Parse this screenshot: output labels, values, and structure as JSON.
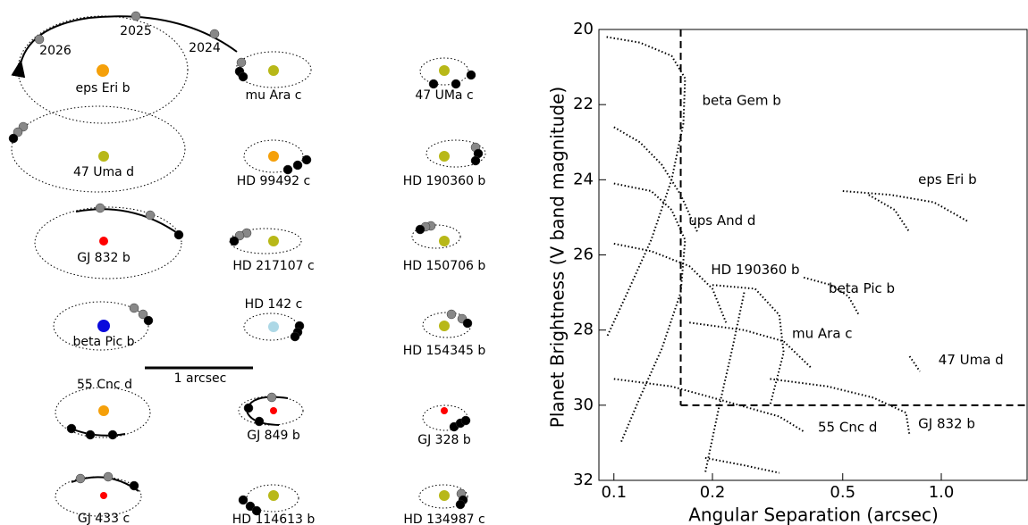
{
  "orbit_panel": {
    "year_labels": [
      "2026",
      "2025",
      "2024"
    ],
    "scale_label": "1 arcsec",
    "systems": [
      {
        "label": "eps Eri b",
        "star_color": "#f5a00a"
      },
      {
        "label": "mu Ara c",
        "star_color": "#b8b818"
      },
      {
        "label": "47 UMa c",
        "star_color": "#b8b818"
      },
      {
        "label": "47 Uma d",
        "star_color": "#b8b818"
      },
      {
        "label": "HD 99492 c",
        "star_color": "#f5a00a"
      },
      {
        "label": "HD 190360 b",
        "star_color": "#b8b818"
      },
      {
        "label": "GJ 832 b",
        "star_color": "#ff0000"
      },
      {
        "label": "HD 217107 c",
        "star_color": "#b8b818"
      },
      {
        "label": "HD 150706 b",
        "star_color": "#b8b818"
      },
      {
        "label": "beta Pic b",
        "star_color": "#0a0adc"
      },
      {
        "label": "HD 142 c",
        "star_color": "#add8e6"
      },
      {
        "label": "HD 154345 b",
        "star_color": "#b8b818"
      },
      {
        "label": "55 Cnc d",
        "star_color": "#f5a00a"
      },
      {
        "label": "GJ 849 b",
        "star_color": "#ff0000"
      },
      {
        "label": "GJ 328 b",
        "star_color": "#ff0000"
      },
      {
        "label": "GJ 433 c",
        "star_color": "#ff0000"
      },
      {
        "label": "HD 114613 b",
        "star_color": "#b8b818"
      },
      {
        "label": "HD 134987 c",
        "star_color": "#b8b818"
      }
    ]
  },
  "chart_data": {
    "type": "line",
    "xlabel": "Angular Separation (arcsec)",
    "ylabel": "Planet Brightness (V band magnitude)",
    "xscale": "log",
    "xlim": [
      0.09,
      1.84
    ],
    "ylim": [
      20,
      32
    ],
    "invert_y": true,
    "xticks": [
      0.1,
      0.2,
      0.5,
      {
        "value": 1,
        "label": "1.0"
      }
    ],
    "yticks": [
      20,
      22,
      24,
      26,
      28,
      30,
      32
    ],
    "color": "#000000",
    "line_style": "dotted",
    "threshold": {
      "x": 0.16,
      "y": 30
    },
    "series": [
      {
        "x": [
          0.095,
          0.12,
          0.15,
          0.165,
          0.163,
          0.15,
          0.13,
          0.11,
          0.095
        ],
        "values": [
          20.2,
          20.35,
          20.7,
          21.3,
          22.5,
          24,
          25.6,
          27,
          28.2
        ]
      },
      {
        "x": [
          0.1,
          0.13,
          0.15,
          0.165,
          0.16,
          0.14,
          0.12,
          0.105
        ],
        "values": [
          24.1,
          24.3,
          24.8,
          25.6,
          27,
          28.5,
          29.8,
          31
        ]
      },
      {
        "x": [
          0.5,
          0.7,
          0.95,
          1.2
        ],
        "values": [
          24.3,
          24.4,
          24.6,
          25.1
        ]
      },
      {
        "x": [
          0.6,
          0.72,
          0.8
        ],
        "values": [
          24.4,
          24.8,
          25.4
        ]
      },
      {
        "x": [
          0.2,
          0.27,
          0.32,
          0.33,
          0.3
        ],
        "values": [
          26.8,
          26.9,
          27.6,
          28.6,
          30
        ]
      },
      {
        "x": [
          0.38,
          0.46,
          0.52,
          0.56
        ],
        "values": [
          26.6,
          26.8,
          27.1,
          27.6
        ]
      },
      {
        "x": [
          0.17,
          0.25,
          0.33,
          0.4
        ],
        "values": [
          27.8,
          28.0,
          28.3,
          29.0
        ]
      },
      {
        "x": [
          0.8,
          0.83,
          0.86
        ],
        "values": [
          28.7,
          28.9,
          29.1
        ]
      },
      {
        "x": [
          0.3,
          0.45,
          0.62,
          0.78,
          0.8
        ],
        "values": [
          29.3,
          29.5,
          29.8,
          30.2,
          30.8
        ]
      },
      {
        "x": [
          0.1,
          0.15,
          0.22,
          0.32,
          0.38
        ],
        "values": [
          29.3,
          29.5,
          29.9,
          30.3,
          30.7
        ]
      },
      {
        "x": [
          0.1,
          0.12,
          0.14,
          0.16,
          0.18
        ],
        "values": [
          22.6,
          23.0,
          23.6,
          24.4,
          25.4
        ]
      },
      {
        "x": [
          0.1,
          0.13,
          0.17,
          0.2,
          0.22
        ],
        "values": [
          25.7,
          25.9,
          26.3,
          26.9,
          27.8
        ]
      },
      {
        "x": [
          0.19,
          0.25,
          0.32
        ],
        "values": [
          31.4,
          31.6,
          31.8
        ]
      },
      {
        "x": [
          0.25,
          0.23,
          0.21,
          0.19
        ],
        "values": [
          27.0,
          28.5,
          30.0,
          31.8
        ]
      }
    ],
    "annotations": [
      {
        "text": "beta Gem b",
        "x": 0.186,
        "y": 21.9
      },
      {
        "text": "eps Eri b",
        "x": 0.85,
        "y": 24.0
      },
      {
        "text": "ups And d",
        "x": 0.169,
        "y": 25.1
      },
      {
        "text": "HD 190360 b",
        "x": 0.198,
        "y": 26.4
      },
      {
        "text": "beta Pic b",
        "x": 0.453,
        "y": 26.9
      },
      {
        "text": "mu Ara c",
        "x": 0.35,
        "y": 28.1
      },
      {
        "text": "47 Uma d",
        "x": 0.98,
        "y": 28.8
      },
      {
        "text": "55 Cnc d",
        "x": 0.42,
        "y": 30.6
      },
      {
        "text": "GJ 832 b",
        "x": 0.85,
        "y": 30.5
      }
    ]
  }
}
